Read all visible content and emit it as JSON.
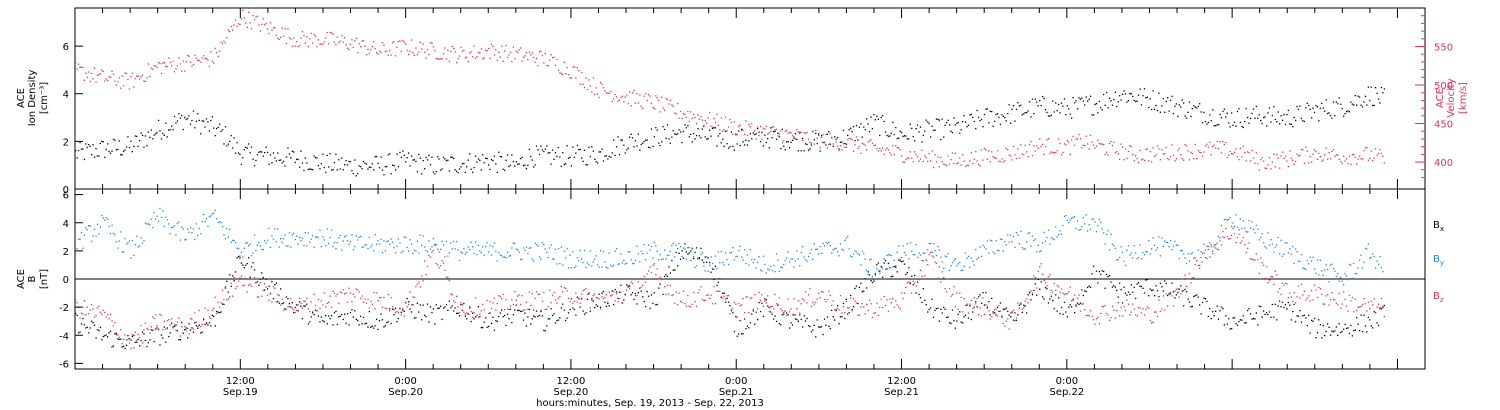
{
  "chart_data": [
    {
      "type": "scatter",
      "panel": "top",
      "ylabel_lines": [
        "ACE",
        "Ion Density",
        "[cm⁻³]"
      ],
      "ylabel_right_lines": [
        "ACE",
        "Velocity",
        "[km/s]"
      ],
      "ylim": [
        0,
        7.6
      ],
      "yticks": [
        "0",
        "2",
        "4",
        "6"
      ],
      "ylim_right": [
        365,
        600
      ],
      "yticks_right": [
        "400",
        "450",
        "500",
        "550"
      ],
      "x_range_hours": [
        0,
        98
      ],
      "series": [
        {
          "name": "",
          "axis": "left",
          "color": "#000000",
          "points": [
            [
              0,
              1.5
            ],
            [
              2,
              1.7
            ],
            [
              4,
              1.8
            ],
            [
              6,
              2.5
            ],
            [
              8,
              3.0
            ],
            [
              10,
              2.6
            ],
            [
              11,
              2.2
            ],
            [
              12,
              1.5
            ],
            [
              14,
              1.4
            ],
            [
              16,
              1.3
            ],
            [
              18,
              1.1
            ],
            [
              20,
              1.0
            ],
            [
              22,
              1.0
            ],
            [
              24,
              1.2
            ],
            [
              26,
              1.0
            ],
            [
              28,
              1.1
            ],
            [
              30,
              1.2
            ],
            [
              32,
              1.0
            ],
            [
              33,
              1.4
            ],
            [
              36,
              1.4
            ],
            [
              38,
              1.5
            ],
            [
              40,
              2.0
            ],
            [
              42,
              2.2
            ],
            [
              44,
              2.4
            ],
            [
              46,
              2.2
            ],
            [
              48,
              2.1
            ],
            [
              50,
              2.2
            ],
            [
              52,
              2.1
            ],
            [
              54,
              2.0
            ],
            [
              56,
              2.2
            ],
            [
              58,
              2.8
            ],
            [
              60,
              2.3
            ],
            [
              62,
              2.5
            ],
            [
              64,
              2.6
            ],
            [
              66,
              3.0
            ],
            [
              68,
              3.2
            ],
            [
              70,
              3.5
            ],
            [
              72,
              3.4
            ],
            [
              74,
              3.6
            ],
            [
              76,
              4.0
            ],
            [
              78,
              3.8
            ],
            [
              80,
              3.5
            ],
            [
              82,
              3.2
            ],
            [
              84,
              3.0
            ],
            [
              86,
              3.1
            ],
            [
              88,
              3.0
            ],
            [
              90,
              3.3
            ],
            [
              92,
              3.5
            ],
            [
              94,
              4.0
            ],
            [
              95,
              3.8
            ]
          ]
        },
        {
          "name": "",
          "axis": "right",
          "color": "#e8305a",
          "points": [
            [
              0,
              520
            ],
            [
              2,
              510
            ],
            [
              4,
              505
            ],
            [
              6,
              525
            ],
            [
              8,
              530
            ],
            [
              10,
              535
            ],
            [
              12,
              590
            ],
            [
              14,
              575
            ],
            [
              16,
              560
            ],
            [
              18,
              560
            ],
            [
              20,
              555
            ],
            [
              22,
              545
            ],
            [
              24,
              550
            ],
            [
              26,
              545
            ],
            [
              28,
              540
            ],
            [
              30,
              545
            ],
            [
              32,
              540
            ],
            [
              34,
              535
            ],
            [
              36,
              520
            ],
            [
              38,
              495
            ],
            [
              40,
              485
            ],
            [
              42,
              478
            ],
            [
              44,
              465
            ],
            [
              46,
              455
            ],
            [
              48,
              445
            ],
            [
              50,
              440
            ],
            [
              52,
              435
            ],
            [
              54,
              430
            ],
            [
              56,
              425
            ],
            [
              58,
              418
            ],
            [
              60,
              412
            ],
            [
              62,
              405
            ],
            [
              64,
              402
            ],
            [
              66,
              408
            ],
            [
              68,
              412
            ],
            [
              70,
              422
            ],
            [
              72,
              420
            ],
            [
              73,
              428
            ],
            [
              75,
              418
            ],
            [
              77,
              410
            ],
            [
              79,
              412
            ],
            [
              81,
              415
            ],
            [
              83,
              418
            ],
            [
              85,
              410
            ],
            [
              86,
              400
            ],
            [
              88,
              405
            ],
            [
              90,
              412
            ],
            [
              92,
              408
            ],
            [
              94,
              410
            ],
            [
              95,
              405
            ]
          ]
        }
      ]
    },
    {
      "type": "scatter",
      "panel": "bottom",
      "ylabel_lines": [
        "ACE",
        "B",
        "[nT]"
      ],
      "ylim": [
        -6.4,
        6.4
      ],
      "yticks": [
        "-6",
        "-4",
        "-2",
        "0",
        "2",
        "4",
        "6"
      ],
      "x_range_hours": [
        0,
        98
      ],
      "zero_line": true,
      "series": [
        {
          "name": "Bx",
          "label_main": "B",
          "label_sub": "x",
          "color": "#000000",
          "points": [
            [
              0,
              -3
            ],
            [
              2,
              -4
            ],
            [
              4,
              -4.5
            ],
            [
              6,
              -4
            ],
            [
              8,
              -3.5
            ],
            [
              10,
              -3
            ],
            [
              12,
              1.5
            ],
            [
              14,
              -0.5
            ],
            [
              16,
              -2
            ],
            [
              18,
              -3
            ],
            [
              20,
              -2.5
            ],
            [
              22,
              -3
            ],
            [
              24,
              -2
            ],
            [
              26,
              -2.5
            ],
            [
              28,
              -2
            ],
            [
              30,
              -3
            ],
            [
              32,
              -2.5
            ],
            [
              34,
              -3
            ],
            [
              36,
              -2
            ],
            [
              38,
              -1.5
            ],
            [
              40,
              -1
            ],
            [
              42,
              -1.5
            ],
            [
              44,
              2
            ],
            [
              46,
              1.5
            ],
            [
              48,
              -3.5
            ],
            [
              50,
              -2
            ],
            [
              52,
              -3
            ],
            [
              54,
              -3.5
            ],
            [
              56,
              -2
            ],
            [
              58,
              0.5
            ],
            [
              60,
              1
            ],
            [
              62,
              -2
            ],
            [
              64,
              -3
            ],
            [
              66,
              -1.5
            ],
            [
              68,
              -3
            ],
            [
              70,
              -0.5
            ],
            [
              72,
              -2.5
            ],
            [
              74,
              0.5
            ],
            [
              76,
              -1
            ],
            [
              78,
              -0.5
            ],
            [
              80,
              -1
            ],
            [
              82,
              -2
            ],
            [
              84,
              -3
            ],
            [
              86,
              -2.5
            ],
            [
              88,
              -2
            ],
            [
              90,
              -3.5
            ],
            [
              92,
              -3.5
            ],
            [
              94,
              -3
            ],
            [
              95,
              -2.5
            ]
          ]
        },
        {
          "name": "By",
          "label_main": "B",
          "label_sub": "y",
          "color": "#1f86e0",
          "points": [
            [
              0,
              2.5
            ],
            [
              2,
              4
            ],
            [
              4,
              2
            ],
            [
              6,
              4.5
            ],
            [
              8,
              3
            ],
            [
              10,
              4.5
            ],
            [
              12,
              2
            ],
            [
              14,
              3
            ],
            [
              16,
              3
            ],
            [
              18,
              3
            ],
            [
              20,
              2.5
            ],
            [
              22,
              2.5
            ],
            [
              24,
              2.5
            ],
            [
              26,
              2.5
            ],
            [
              28,
              2
            ],
            [
              30,
              2
            ],
            [
              32,
              2
            ],
            [
              34,
              2
            ],
            [
              36,
              1.5
            ],
            [
              38,
              1.5
            ],
            [
              40,
              1.5
            ],
            [
              42,
              2
            ],
            [
              44,
              2
            ],
            [
              46,
              1
            ],
            [
              48,
              2
            ],
            [
              50,
              1
            ],
            [
              52,
              1.5
            ],
            [
              54,
              2
            ],
            [
              56,
              2.5
            ],
            [
              58,
              0.5
            ],
            [
              60,
              2
            ],
            [
              62,
              2
            ],
            [
              64,
              1
            ],
            [
              66,
              2
            ],
            [
              68,
              3
            ],
            [
              70,
              2.5
            ],
            [
              72,
              4
            ],
            [
              74,
              4
            ],
            [
              76,
              1.5
            ],
            [
              78,
              2.5
            ],
            [
              80,
              2
            ],
            [
              82,
              1.5
            ],
            [
              84,
              4.5
            ],
            [
              86,
              3
            ],
            [
              88,
              2
            ],
            [
              90,
              1
            ],
            [
              92,
              0
            ],
            [
              94,
              2
            ],
            [
              95,
              0.5
            ]
          ]
        },
        {
          "name": "Bz",
          "label_main": "B",
          "label_sub": "z",
          "color": "#e8305a",
          "points": [
            [
              0,
              -2
            ],
            [
              2,
              -2.5
            ],
            [
              4,
              -4.5
            ],
            [
              6,
              -3
            ],
            [
              8,
              -3.5
            ],
            [
              10,
              -2
            ],
            [
              12,
              0
            ],
            [
              14,
              -1
            ],
            [
              16,
              -2
            ],
            [
              18,
              -1.5
            ],
            [
              20,
              -1
            ],
            [
              22,
              -1.5
            ],
            [
              24,
              -2
            ],
            [
              26,
              2
            ],
            [
              28,
              -2
            ],
            [
              30,
              -2
            ],
            [
              32,
              -1.5
            ],
            [
              34,
              -1.5
            ],
            [
              36,
              -1
            ],
            [
              38,
              -1.5
            ],
            [
              40,
              -1
            ],
            [
              42,
              0.5
            ],
            [
              44,
              -1.5
            ],
            [
              46,
              -1
            ],
            [
              48,
              -2
            ],
            [
              50,
              -1.5
            ],
            [
              52,
              -2
            ],
            [
              54,
              -1
            ],
            [
              56,
              -2
            ],
            [
              58,
              -2
            ],
            [
              60,
              -1.5
            ],
            [
              62,
              1.5
            ],
            [
              64,
              -1.5
            ],
            [
              66,
              -2
            ],
            [
              68,
              -3
            ],
            [
              70,
              0.5
            ],
            [
              72,
              -1
            ],
            [
              74,
              -2.5
            ],
            [
              76,
              -2
            ],
            [
              78,
              -2.5
            ],
            [
              80,
              -1
            ],
            [
              82,
              2
            ],
            [
              84,
              3.5
            ],
            [
              86,
              1
            ],
            [
              88,
              -1
            ],
            [
              90,
              -1
            ],
            [
              92,
              -1.5
            ],
            [
              94,
              -2
            ],
            [
              95,
              -2
            ]
          ]
        }
      ]
    }
  ],
  "xaxis": {
    "ticks": [
      {
        "hour": 12,
        "time": "12:00",
        "date": "Sep.19"
      },
      {
        "hour": 24,
        "time": "0:00",
        "date": "Sep.20"
      },
      {
        "hour": 36,
        "time": "12:00",
        "date": "Sep.20"
      },
      {
        "hour": 48,
        "time": "0:00",
        "date": "Sep.21"
      },
      {
        "hour": 60,
        "time": "12:00",
        "date": "Sep.21"
      },
      {
        "hour": 72,
        "time": "0:00",
        "date": "Sep.22"
      }
    ],
    "label": "hours:minutes, Sep. 19, 2013 - Sep. 22, 2013"
  }
}
